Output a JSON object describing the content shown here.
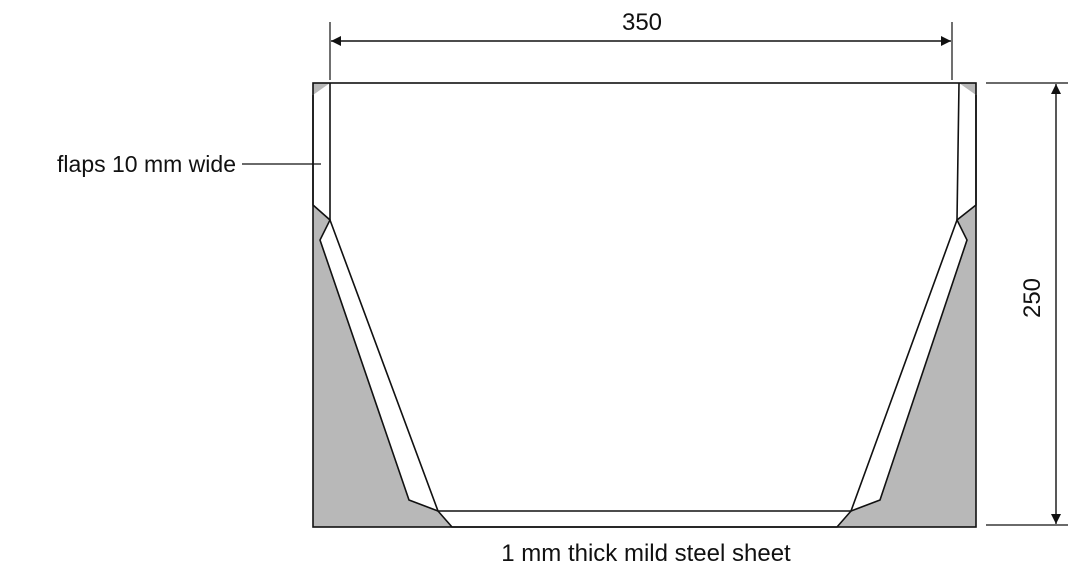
{
  "diagram": {
    "width_dimension": "350",
    "height_dimension": "250",
    "flaps_label": "flaps 10 mm wide",
    "caption": "1 mm thick mild steel sheet"
  },
  "colors": {
    "waste_fill": "#b8b8b8",
    "line": "#111111",
    "background": "#ffffff"
  }
}
